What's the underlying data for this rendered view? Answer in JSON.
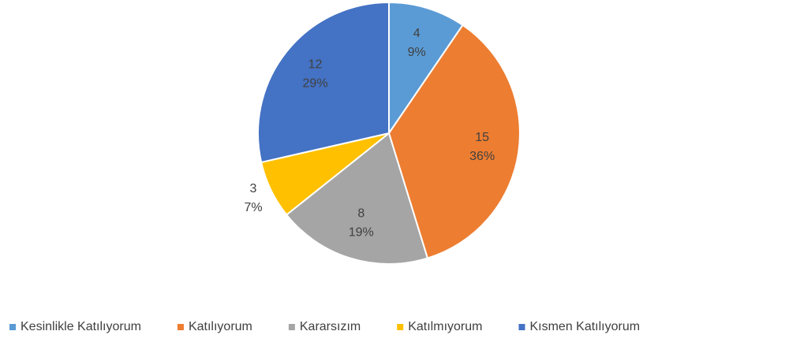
{
  "chart_data": {
    "type": "pie",
    "categories": [
      "Kesinlikle Katılıyorum",
      "Katılıyorum",
      "Kararsızım",
      "Katılmıyorum",
      "Kısmen Katılıyorum"
    ],
    "values": [
      4,
      15,
      8,
      3,
      12
    ],
    "percent_labels": [
      "9%",
      "36%",
      "19%",
      "7%",
      "29%"
    ],
    "colors": [
      "#5b9bd5",
      "#ed7d31",
      "#a5a5a5",
      "#ffc000",
      "#4472c4"
    ],
    "legend": "bottom"
  }
}
